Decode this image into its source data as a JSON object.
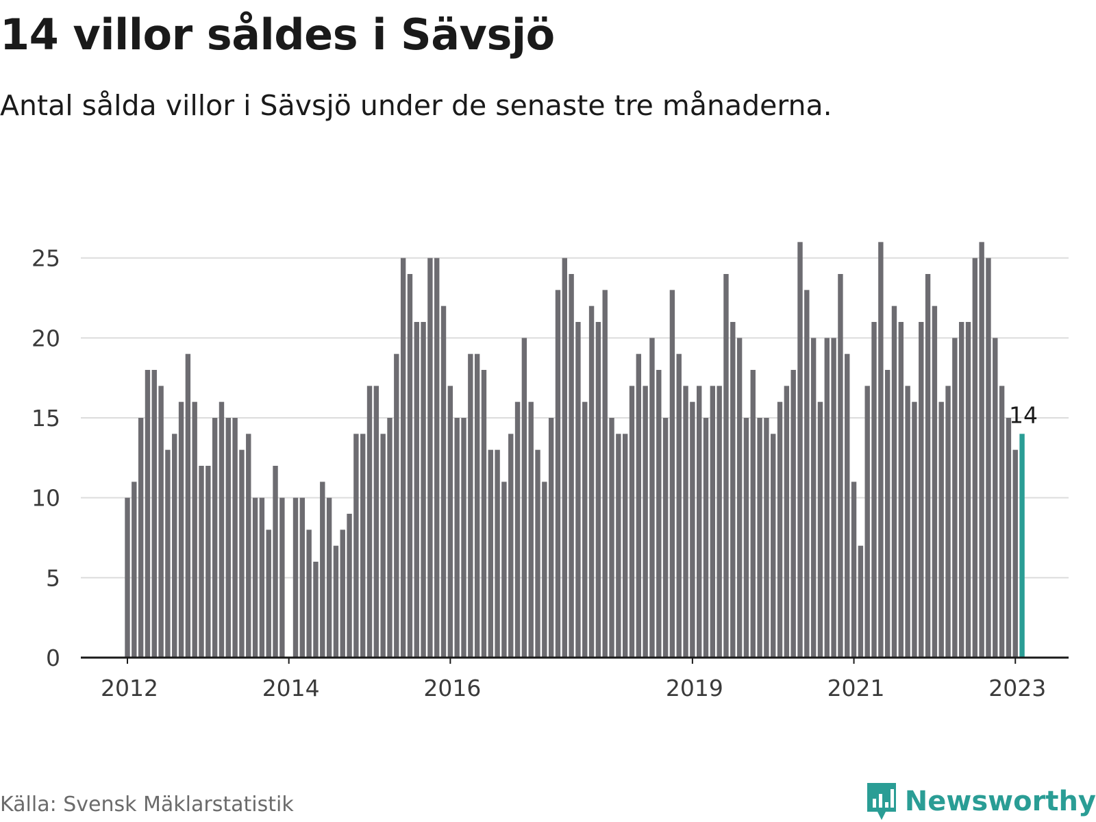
{
  "title": "14 villor såldes i Sävsjö",
  "subtitle": "Antal sålda villor i Sävsjö under de senaste tre månaderna.",
  "source": "Källa: Svensk Mäklarstatistik",
  "brand": {
    "name": "Newsworthy",
    "icon": "bar-chart-speech-bubble-icon",
    "color": "#2a9d95"
  },
  "chart_data": {
    "type": "bar",
    "title": "14 villor såldes i Sävsjö",
    "xlabel": "",
    "ylabel": "",
    "ylim": [
      0,
      27
    ],
    "yticks": [
      0,
      5,
      10,
      15,
      20,
      25
    ],
    "grid": true,
    "start_month": "2012-01",
    "xticks": [
      {
        "label": "2012",
        "index": 0
      },
      {
        "label": "2014",
        "index": 24
      },
      {
        "label": "2016",
        "index": 48
      },
      {
        "label": "2019",
        "index": 84
      },
      {
        "label": "2021",
        "index": 108
      },
      {
        "label": "2023",
        "index": 132
      }
    ],
    "values": [
      10,
      11,
      15,
      18,
      18,
      17,
      13,
      14,
      16,
      19,
      16,
      12,
      12,
      15,
      16,
      15,
      15,
      13,
      14,
      10,
      10,
      8,
      12,
      10,
      null,
      10,
      10,
      8,
      6,
      11,
      10,
      7,
      8,
      9,
      14,
      14,
      17,
      17,
      14,
      15,
      19,
      25,
      24,
      21,
      21,
      25,
      25,
      22,
      17,
      15,
      15,
      19,
      19,
      18,
      13,
      13,
      11,
      14,
      16,
      20,
      16,
      13,
      11,
      15,
      23,
      25,
      24,
      21,
      16,
      22,
      21,
      23,
      15,
      14,
      14,
      17,
      19,
      17,
      20,
      18,
      15,
      23,
      19,
      17,
      16,
      17,
      15,
      17,
      17,
      24,
      21,
      20,
      15,
      18,
      15,
      15,
      14,
      16,
      17,
      18,
      26,
      23,
      20,
      16,
      20,
      20,
      24,
      19,
      11,
      7,
      17,
      21,
      26,
      18,
      22,
      21,
      17,
      16,
      21,
      24,
      22,
      16,
      17,
      20,
      21,
      21,
      25,
      26,
      25,
      20,
      17,
      15,
      13,
      14
    ],
    "highlight": {
      "index": 133,
      "label": "14",
      "color": "#2a9d95"
    },
    "bar_color": "#6d6c71"
  }
}
